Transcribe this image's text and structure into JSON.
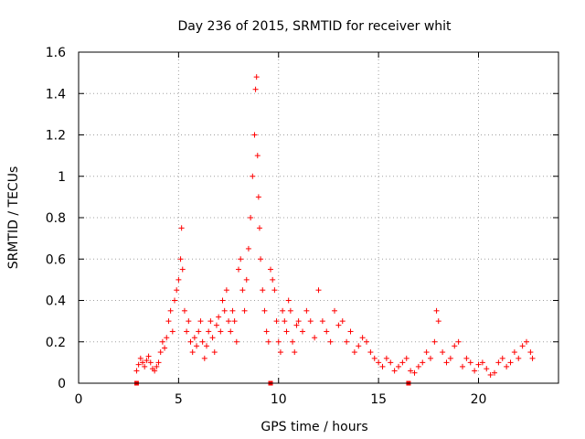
{
  "chart_data": {
    "type": "scatter",
    "title": "Day 236 of 2015, SRMTID for receiver whit",
    "xlabel": "GPS time / hours",
    "ylabel": "SRMTID / TECUs",
    "xlim": [
      0,
      24
    ],
    "ylim": [
      0,
      1.6
    ],
    "xticks": [
      0,
      5,
      10,
      15,
      20
    ],
    "yticks": [
      0,
      0.2,
      0.4,
      0.6,
      0.8,
      1,
      1.2,
      1.4,
      1.6
    ],
    "xtick_labels": [
      "0",
      "5",
      "10",
      "15",
      "20"
    ],
    "ytick_labels": [
      "0",
      "0.2",
      "0.4",
      "0.6",
      "0.8",
      "1",
      "1.2",
      "1.4",
      "1.6"
    ],
    "grid": true,
    "marker": "+",
    "series": [
      {
        "name": "SRMTID",
        "color": "#ff0000",
        "x": [
          2.9,
          3.0,
          3.1,
          3.2,
          3.3,
          3.4,
          3.5,
          3.6,
          3.7,
          3.8,
          3.9,
          4.0,
          4.1,
          4.2,
          4.3,
          4.4,
          4.5,
          4.6,
          4.7,
          4.8,
          4.9,
          5.0,
          5.1,
          5.15,
          5.2,
          5.3,
          5.4,
          5.5,
          5.6,
          5.7,
          5.8,
          5.9,
          6.0,
          6.1,
          6.2,
          6.3,
          6.4,
          6.5,
          6.6,
          6.7,
          6.8,
          6.9,
          7.0,
          7.1,
          7.2,
          7.3,
          7.4,
          7.5,
          7.6,
          7.7,
          7.8,
          7.9,
          8.0,
          8.1,
          8.2,
          8.3,
          8.4,
          8.5,
          8.6,
          8.7,
          8.8,
          8.85,
          8.9,
          8.95,
          9.0,
          9.05,
          9.1,
          9.2,
          9.3,
          9.4,
          9.5,
          9.6,
          9.7,
          9.8,
          9.9,
          10.0,
          10.1,
          10.2,
          10.3,
          10.4,
          10.5,
          10.6,
          10.7,
          10.8,
          10.9,
          11.0,
          11.2,
          11.4,
          11.6,
          11.8,
          12.0,
          12.2,
          12.4,
          12.6,
          12.8,
          13.0,
          13.2,
          13.4,
          13.6,
          13.8,
          14.0,
          14.2,
          14.4,
          14.6,
          14.8,
          15.0,
          15.2,
          15.4,
          15.6,
          15.8,
          16.0,
          16.2,
          16.4,
          16.6,
          16.8,
          17.0,
          17.2,
          17.4,
          17.6,
          17.8,
          17.9,
          18.0,
          18.2,
          18.4,
          18.6,
          18.8,
          19.0,
          19.2,
          19.4,
          19.6,
          19.8,
          20.0,
          20.2,
          20.4,
          20.6,
          20.8,
          21.0,
          21.2,
          21.4,
          21.6,
          21.8,
          22.0,
          22.2,
          22.4,
          22.6,
          22.7
        ],
        "y": [
          0.06,
          0.09,
          0.12,
          0.1,
          0.08,
          0.11,
          0.13,
          0.1,
          0.07,
          0.06,
          0.08,
          0.1,
          0.15,
          0.2,
          0.17,
          0.22,
          0.3,
          0.35,
          0.25,
          0.4,
          0.45,
          0.5,
          0.6,
          0.75,
          0.55,
          0.35,
          0.25,
          0.3,
          0.2,
          0.15,
          0.22,
          0.18,
          0.25,
          0.3,
          0.2,
          0.12,
          0.18,
          0.25,
          0.3,
          0.22,
          0.15,
          0.28,
          0.32,
          0.25,
          0.4,
          0.35,
          0.45,
          0.3,
          0.25,
          0.35,
          0.3,
          0.2,
          0.55,
          0.6,
          0.45,
          0.35,
          0.5,
          0.65,
          0.8,
          1.0,
          1.2,
          1.42,
          1.48,
          1.1,
          0.9,
          0.75,
          0.6,
          0.45,
          0.35,
          0.25,
          0.2,
          0.55,
          0.5,
          0.45,
          0.3,
          0.2,
          0.15,
          0.35,
          0.3,
          0.25,
          0.4,
          0.35,
          0.2,
          0.15,
          0.28,
          0.3,
          0.25,
          0.35,
          0.3,
          0.22,
          0.45,
          0.3,
          0.25,
          0.2,
          0.35,
          0.28,
          0.3,
          0.2,
          0.25,
          0.15,
          0.18,
          0.22,
          0.2,
          0.15,
          0.12,
          0.1,
          0.08,
          0.12,
          0.1,
          0.06,
          0.08,
          0.1,
          0.12,
          0.06,
          0.05,
          0.08,
          0.1,
          0.15,
          0.12,
          0.2,
          0.35,
          0.3,
          0.15,
          0.1,
          0.12,
          0.18,
          0.2,
          0.08,
          0.12,
          0.1,
          0.06,
          0.09,
          0.1,
          0.07,
          0.04,
          0.05,
          0.1,
          0.12,
          0.08,
          0.1,
          0.15,
          0.12,
          0.18,
          0.2,
          0.15,
          0.12
        ],
        "zero_markers_x": [
          2.9,
          9.6,
          16.5
        ]
      }
    ]
  }
}
